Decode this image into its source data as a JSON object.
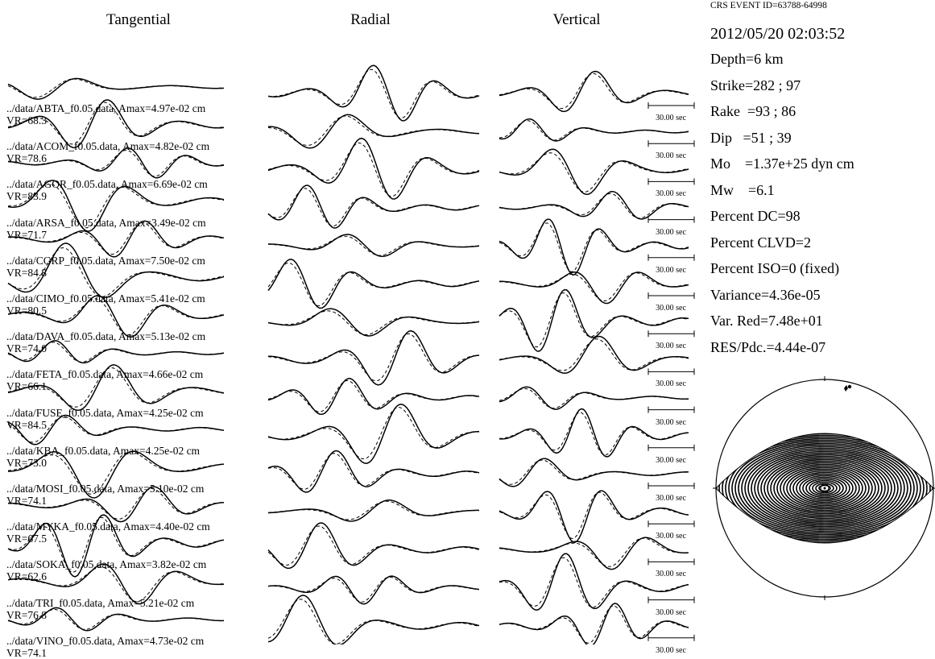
{
  "columns": [
    "Tangential",
    "Radial",
    "Vertical"
  ],
  "stations": [
    {
      "file": "../data/ABTA_f0.05.data",
      "amax": "Amax=4.97e-02 cm",
      "vr": "VR=68.3"
    },
    {
      "file": "../data/ACOM_f0.05.data",
      "amax": "Amax=4.82e-02 cm",
      "vr": "VR=78.6"
    },
    {
      "file": "../data/AGOR_f0.05.data",
      "amax": "Amax=6.69e-02 cm",
      "vr": "VR=83.9"
    },
    {
      "file": "../data/ARSA_f0.05.data",
      "amax": "Amax=3.49e-02 cm",
      "vr": "VR=71.7"
    },
    {
      "file": "../data/CGRP_f0.05.data",
      "amax": "Amax=7.50e-02 cm",
      "vr": "VR=84.8"
    },
    {
      "file": "../data/CIMO_f0.05.data",
      "amax": "Amax=5.41e-02 cm",
      "vr": "VR=80.5"
    },
    {
      "file": "../data/DAVA_f0.05.data",
      "amax": "Amax=5.13e-02 cm",
      "vr": "VR=74.0"
    },
    {
      "file": "../data/FETA_f0.05.data",
      "amax": "Amax=4.66e-02 cm",
      "vr": "VR=66.1"
    },
    {
      "file": "../data/FUSE_f0.05.data",
      "amax": "Amax=4.25e-02 cm",
      "vr": "VR=84.5"
    },
    {
      "file": "../data/KBA_f0.05.data",
      "amax": "Amax=4.25e-02 cm",
      "vr": "VR=73.0"
    },
    {
      "file": "../data/MOSI_f0.05.data",
      "amax": "Amax=5.10e-02 cm",
      "vr": "VR=74.1"
    },
    {
      "file": "../data/MYKA_f0.05.data",
      "amax": "Amax=4.40e-02 cm",
      "vr": "VR=67.5"
    },
    {
      "file": "../data/SOKA_f0.05.data",
      "amax": "Amax=3.82e-02 cm",
      "vr": "VR=62.6"
    },
    {
      "file": "../data/TRI_f0.05.data",
      "amax": "Amax=5.21e-02 cm",
      "vr": "VR=76.8"
    },
    {
      "file": "../data/VINO_f0.05.data",
      "amax": "Amax=4.73e-02 cm",
      "vr": "VR=74.1"
    }
  ],
  "time_scale": "30.00 sec",
  "event": {
    "id": "CRS EVENT ID=63788-64998",
    "datetime": "2012/05/20 02:03:52",
    "params": [
      "Depth=6 km",
      "Strike=282 ; 97",
      "Rake  =93 ; 86",
      "Dip   =51 ; 39",
      "Mo    =1.37e+25 dyn cm",
      "Mw    =6.1",
      "Percent DC=98",
      "Percent CLVD=2",
      "Percent ISO=0 (fixed)",
      "Variance=4.36e-05",
      "Var. Red=7.48e+01",
      "RES/Pdc.=4.44e-07"
    ]
  },
  "legend": {
    "observed": "solid",
    "synthetic": "dashed"
  },
  "colors": {
    "ink": "#000000",
    "background": "#ffffff"
  }
}
